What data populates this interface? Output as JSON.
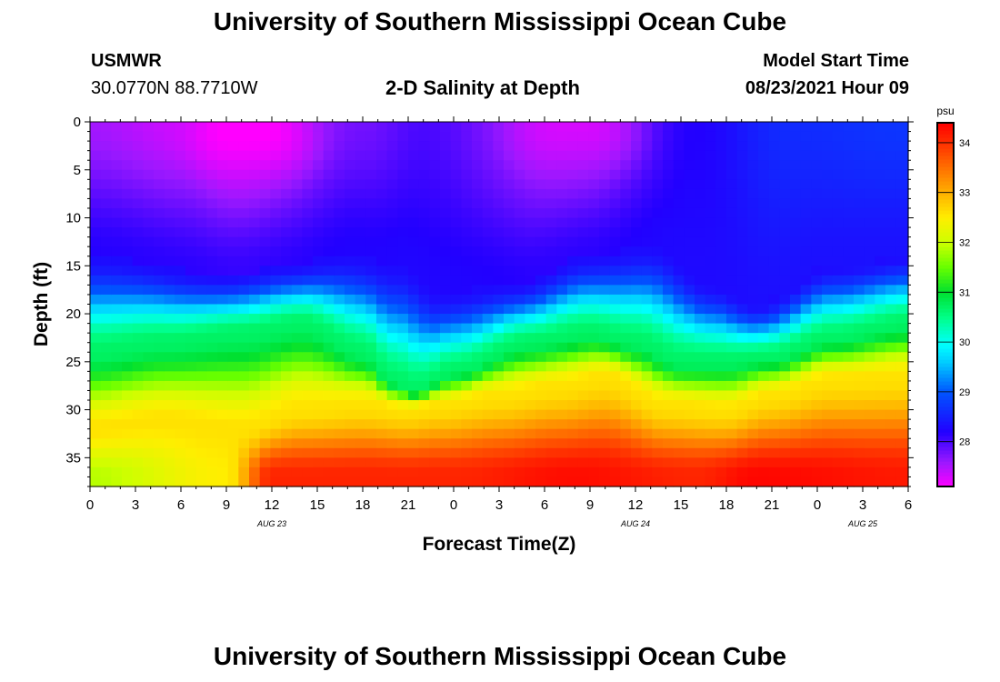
{
  "page": {
    "title_top": "University of Southern Mississippi Ocean Cube",
    "title_bottom": "University of Southern Mississippi Ocean Cube",
    "station": "USMWR",
    "coords": "30.0770N  88.7710W",
    "model_start_label": "Model Start Time",
    "model_start_value": "08/23/2021 Hour 09",
    "plot_title": "2-D Salinity at Depth"
  },
  "chart_data": {
    "type": "heatmap",
    "title": "2-D Salinity at Depth",
    "xlabel": "Forecast Time(Z)",
    "ylabel": "Depth (ft)",
    "x_tick_labels": [
      "0",
      "3",
      "6",
      "9",
      "12",
      "15",
      "18",
      "21",
      "0",
      "3",
      "6",
      "9",
      "12",
      "15",
      "18",
      "21",
      "0",
      "3",
      "6"
    ],
    "x_date_labels": [
      {
        "label": "AUG 23",
        "tick_index": 4
      },
      {
        "label": "AUG 24",
        "tick_index": 12
      },
      {
        "label": "AUG 25",
        "tick_index": 17
      }
    ],
    "x_range_hours": [
      0,
      54
    ],
    "y_ticks": [
      0,
      5,
      10,
      15,
      20,
      25,
      30,
      35
    ],
    "y_range": [
      0,
      38
    ],
    "y_inverted": true,
    "colorbar": {
      "unit": "psu",
      "range": [
        27.1,
        34.4
      ],
      "ticks": [
        28,
        29,
        30,
        31,
        32,
        33,
        34
      ],
      "colors": [
        [
          27.1,
          "#ff00ff"
        ],
        [
          27.6,
          "#9a18ff"
        ],
        [
          28.2,
          "#2200ff"
        ],
        [
          29.0,
          "#0055ff"
        ],
        [
          29.6,
          "#00ccff"
        ],
        [
          29.95,
          "#00ffff"
        ],
        [
          30.5,
          "#00ff88"
        ],
        [
          31.0,
          "#00e030"
        ],
        [
          31.5,
          "#66ff00"
        ],
        [
          32.0,
          "#ccff00"
        ],
        [
          32.5,
          "#ffee00"
        ],
        [
          33.0,
          "#ffb000"
        ],
        [
          33.5,
          "#ff7000"
        ],
        [
          34.0,
          "#ff3000"
        ],
        [
          34.4,
          "#ff0000"
        ]
      ]
    },
    "cell_size": {
      "hours": 0.7,
      "feet": 1.0
    },
    "surface_salinity": {
      "hours": [
        0,
        6,
        10,
        18,
        22,
        32,
        40,
        46,
        54
      ],
      "values": [
        27.55,
        27.35,
        27.05,
        27.8,
        28.0,
        27.3,
        28.2,
        28.6,
        28.7
      ]
    },
    "lower_salinity": {
      "hours": [
        0,
        9,
        12,
        20,
        24,
        32,
        40,
        44,
        54
      ],
      "values": [
        31.9,
        32.5,
        34.1,
        34.1,
        34.1,
        34.3,
        34.1,
        34.35,
        34.2
      ]
    },
    "upper_layer_bottom_ft": {
      "hours": [
        0,
        9,
        13,
        17,
        20.5,
        23,
        28,
        33,
        37,
        41,
        44,
        49,
        54
      ],
      "values": [
        14,
        16,
        15,
        14,
        15,
        18,
        17,
        14,
        13,
        17,
        19,
        15,
        14
      ]
    },
    "halocline_depth_ft": {
      "hours": [
        0,
        5,
        10,
        14,
        18,
        20,
        21.5,
        24,
        29,
        33,
        36,
        39,
        42,
        45,
        49,
        54
      ],
      "values": [
        24,
        23,
        22,
        21,
        24,
        27,
        28,
        26,
        23,
        22,
        23,
        25,
        25,
        24.5,
        22.5,
        21
      ]
    },
    "halocline_bottom_ft": {
      "hours": [
        0,
        5,
        10,
        14,
        18,
        21,
        23,
        27,
        31,
        34,
        38,
        42,
        45,
        49,
        54
      ],
      "values": [
        32,
        31,
        32,
        30,
        29.5,
        30,
        29.5,
        28.5,
        27.5,
        26.5,
        29.5,
        30,
        28.5,
        26.8,
        26.5
      ]
    },
    "surface_high_centers": [
      {
        "hour": 10.5,
        "depth_ft": 3,
        "value": 27.05
      },
      {
        "hour": 32,
        "depth_ft": 2,
        "value": 27.3
      }
    ]
  }
}
